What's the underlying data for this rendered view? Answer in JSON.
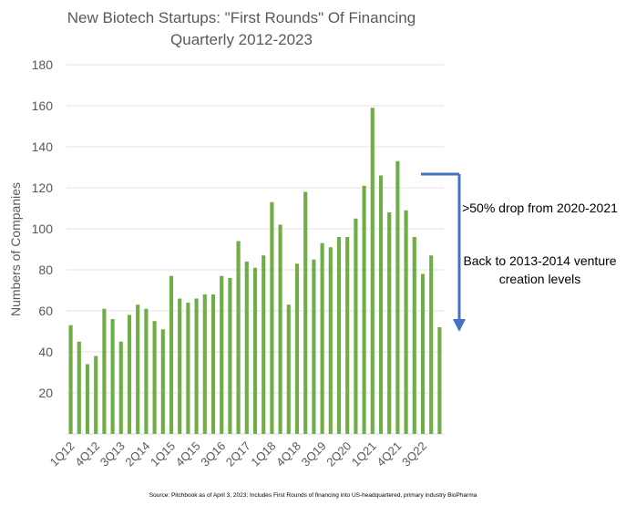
{
  "chart_data": {
    "type": "bar",
    "title_lines": [
      "New Biotech Startups: \"First Rounds\" Of Financing",
      "Quarterly 2012-2023"
    ],
    "ylabel": "Numbers of Companies",
    "xlabel": "",
    "ylim": [
      0,
      180
    ],
    "yticks": [
      20,
      40,
      60,
      80,
      100,
      120,
      140,
      160,
      180
    ],
    "grid": true,
    "bar_color": "#70AD47",
    "categories": [
      "1Q12",
      "2Q12",
      "3Q12",
      "4Q12",
      "1Q13",
      "2Q13",
      "3Q13",
      "4Q13",
      "1Q14",
      "2Q14",
      "3Q14",
      "4Q14",
      "1Q15",
      "2Q15",
      "3Q15",
      "4Q15",
      "1Q16",
      "2Q16",
      "3Q16",
      "4Q16",
      "1Q17",
      "2Q17",
      "3Q17",
      "4Q17",
      "1Q18",
      "2Q18",
      "3Q18",
      "4Q18",
      "1Q19",
      "2Q19",
      "3Q19",
      "4Q19",
      "1Q20",
      "2Q20",
      "3Q20",
      "4Q20",
      "1Q21",
      "2Q21",
      "3Q21",
      "4Q21",
      "1Q22",
      "2Q22",
      "3Q22",
      "4Q22",
      "1Q23"
    ],
    "tick_labels": [
      "1Q12",
      "4Q12",
      "3Q13",
      "2Q14",
      "1Q15",
      "4Q15",
      "3Q16",
      "2Q17",
      "1Q18",
      "4Q18",
      "3Q19",
      "2Q20",
      "1Q21",
      "4Q21",
      "3Q22"
    ],
    "values": [
      53,
      45,
      34,
      38,
      61,
      56,
      45,
      58,
      63,
      61,
      55,
      51,
      77,
      66,
      64,
      66,
      68,
      68,
      77,
      76,
      94,
      84,
      81,
      87,
      113,
      102,
      63,
      83,
      118,
      85,
      93,
      91,
      96,
      96,
      105,
      121,
      159,
      126,
      108,
      133,
      109,
      96,
      78,
      87,
      52
    ],
    "arrow_color": "#4472C4"
  },
  "annotations": {
    "drop": ">50% drop from 2020-2021",
    "back": "Back to 2013-2014 venture creation levels"
  },
  "source": "Source: Pitchbook as of April 3, 2023; Includes First Rounds of financing into US-headquartered, primary industry BioPharma"
}
